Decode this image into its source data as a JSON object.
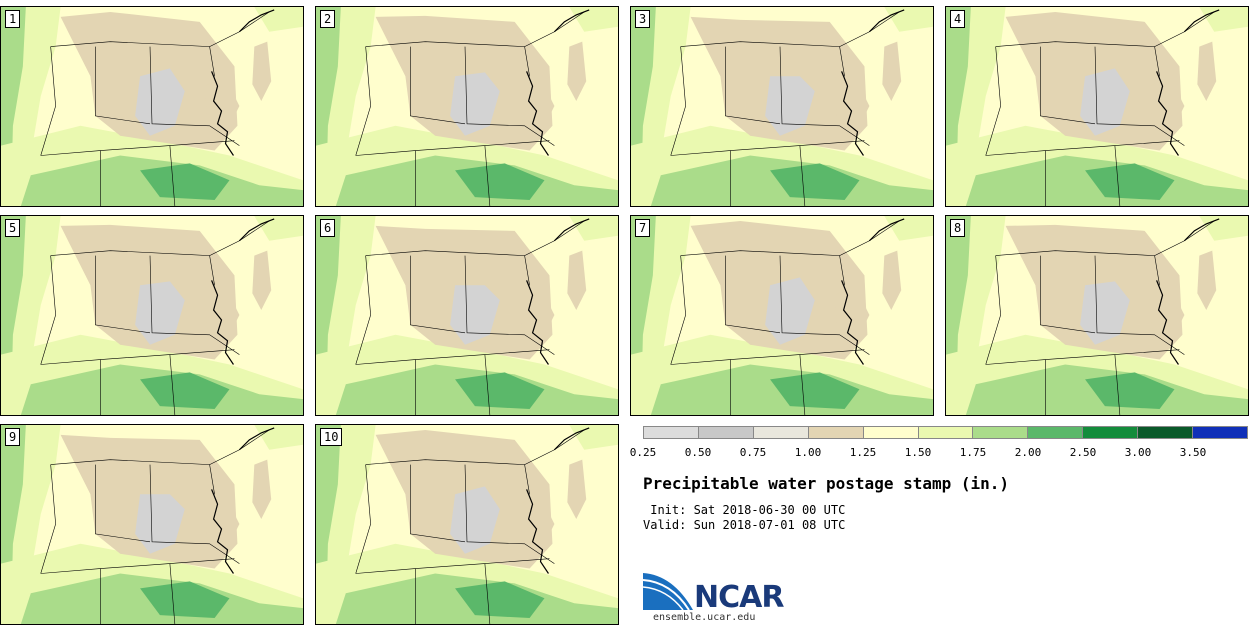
{
  "stamps": [
    "1",
    "2",
    "3",
    "4",
    "5",
    "6",
    "7",
    "8",
    "9",
    "10"
  ],
  "legend": {
    "colors": [
      "#dcdcdc",
      "#c8c8c8",
      "#e9e7dd",
      "#e3d5b3",
      "#fffecd",
      "#eaf9b0",
      "#aadc8a",
      "#5bb86a",
      "#138c3b",
      "#0a5a2a",
      "#1030b8"
    ],
    "ticks": [
      "0.25",
      "0.50",
      "0.75",
      "1.00",
      "1.25",
      "1.50",
      "1.75",
      "2.00",
      "2.50",
      "3.00",
      "3.50"
    ]
  },
  "title": "Precipitable water postage stamp (in.)",
  "init_line": " Init: Sat 2018-06-30 00 UTC",
  "valid_line": "Valid: Sun 2018-07-01 08 UTC",
  "logo": {
    "text": "NCAR",
    "url": "ensemble.ucar.edu"
  },
  "map_colors": {
    "moist_low": "#eaf9b0",
    "moist_mid": "#aadc8a",
    "moist_high": "#5bb86a",
    "dry": "#e3d5b3",
    "driest": "#d3d3d3",
    "background": "#fffecd"
  }
}
